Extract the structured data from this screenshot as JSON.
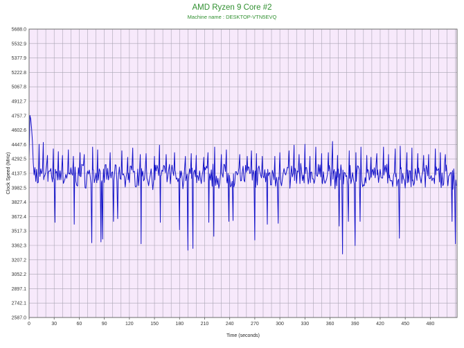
{
  "chart_data": {
    "type": "line",
    "title": "AMD Ryzen 9 Core #2",
    "subtitle": "Machine name : DESKTOP-VTN5EVQ",
    "xlabel": "Time (seconds)",
    "ylabel": "Clock Speed (MHz)",
    "xlim": [
      0,
      512
    ],
    "ylim": [
      2587.0,
      5688.0
    ],
    "x_ticks": [
      "0",
      "30",
      "60",
      "90",
      "120",
      "150",
      "180",
      "210",
      "240",
      "270",
      "300",
      "330",
      "360",
      "390",
      "420",
      "450",
      "480"
    ],
    "y_ticks": [
      "5688.0",
      "5532.9",
      "5377.9",
      "5222.8",
      "5067.8",
      "4912.7",
      "4757.7",
      "4602.6",
      "4447.6",
      "4292.5",
      "4137.5",
      "3982.5",
      "3827.4",
      "3672.4",
      "3517.3",
      "3362.3",
      "3207.2",
      "3052.2",
      "2897.1",
      "2742.1",
      "2587.0"
    ],
    "grid": true,
    "colors": {
      "line": "#1010c8",
      "plot_bg": "#f7e9fb",
      "grid": "#a9a4b3",
      "title": "#2f8f2f"
    },
    "series": [
      {
        "baseline": 4110,
        "initial": [
          [
            0,
            4300
          ],
          [
            1,
            4760
          ],
          [
            2,
            4720
          ],
          [
            3,
            4620
          ],
          [
            4,
            4480
          ],
          [
            5,
            4250
          ],
          [
            6,
            4120
          ],
          [
            7,
            4200
          ],
          [
            8,
            4050
          ],
          [
            9,
            4180
          ]
        ],
        "spikes_up": [
          [
            12,
            4450
          ],
          [
            17,
            4470
          ],
          [
            22,
            4330
          ],
          [
            29,
            4400
          ],
          [
            35,
            4370
          ],
          [
            40,
            4330
          ],
          [
            47,
            4390
          ],
          [
            53,
            4320
          ],
          [
            61,
            4360
          ],
          [
            66,
            4340
          ],
          [
            76,
            4420
          ],
          [
            82,
            4390
          ],
          [
            88,
            4330
          ],
          [
            97,
            4360
          ],
          [
            106,
            4320
          ],
          [
            111,
            4380
          ],
          [
            118,
            4310
          ],
          [
            124,
            4410
          ],
          [
            133,
            4340
          ],
          [
            140,
            4350
          ],
          [
            150,
            4320
          ],
          [
            156,
            4440
          ],
          [
            164,
            4340
          ],
          [
            174,
            4360
          ],
          [
            180,
            4420
          ],
          [
            187,
            4320
          ],
          [
            194,
            4350
          ],
          [
            200,
            4330
          ],
          [
            209,
            4310
          ],
          [
            214,
            4360
          ],
          [
            222,
            4420
          ],
          [
            230,
            4340
          ],
          [
            236,
            4390
          ],
          [
            244,
            4320
          ],
          [
            252,
            4340
          ],
          [
            261,
            4320
          ],
          [
            266,
            4380
          ],
          [
            272,
            4350
          ],
          [
            279,
            4320
          ],
          [
            285,
            4420
          ],
          [
            294,
            4320
          ],
          [
            300,
            4360
          ],
          [
            311,
            4380
          ],
          [
            317,
            4440
          ],
          [
            323,
            4340
          ],
          [
            330,
            4450
          ],
          [
            336,
            4320
          ],
          [
            343,
            4420
          ],
          [
            350,
            4350
          ],
          [
            358,
            4360
          ],
          [
            363,
            4480
          ],
          [
            369,
            4330
          ],
          [
            375,
            4450
          ],
          [
            383,
            4380
          ],
          [
            391,
            4360
          ],
          [
            397,
            4420
          ],
          [
            404,
            4330
          ],
          [
            409,
            4310
          ],
          [
            416,
            4350
          ],
          [
            424,
            4420
          ],
          [
            430,
            4340
          ],
          [
            438,
            4400
          ],
          [
            444,
            4430
          ],
          [
            452,
            4360
          ],
          [
            458,
            4410
          ],
          [
            465,
            4350
          ],
          [
            472,
            4330
          ],
          [
            478,
            4340
          ],
          [
            486,
            4400
          ],
          [
            492,
            4360
          ],
          [
            498,
            4340
          ],
          [
            506,
            4310
          ]
        ],
        "spikes_down": [
          [
            31,
            3610
          ],
          [
            54,
            3590
          ],
          [
            75,
            3390
          ],
          [
            86,
            3400
          ],
          [
            88,
            3430
          ],
          [
            101,
            3620
          ],
          [
            106,
            3650
          ],
          [
            134,
            3380
          ],
          [
            157,
            3610
          ],
          [
            180,
            3530
          ],
          [
            190,
            3310
          ],
          [
            196,
            3330
          ],
          [
            215,
            3610
          ],
          [
            221,
            3460
          ],
          [
            239,
            3620
          ],
          [
            244,
            3630
          ],
          [
            270,
            3420
          ],
          [
            285,
            3590
          ],
          [
            298,
            3600
          ],
          [
            371,
            3570
          ],
          [
            375,
            3270
          ],
          [
            382,
            3620
          ],
          [
            390,
            3360
          ],
          [
            396,
            3620
          ],
          [
            443,
            3440
          ],
          [
            506,
            3620
          ],
          [
            510,
            3380
          ]
        ]
      }
    ]
  }
}
